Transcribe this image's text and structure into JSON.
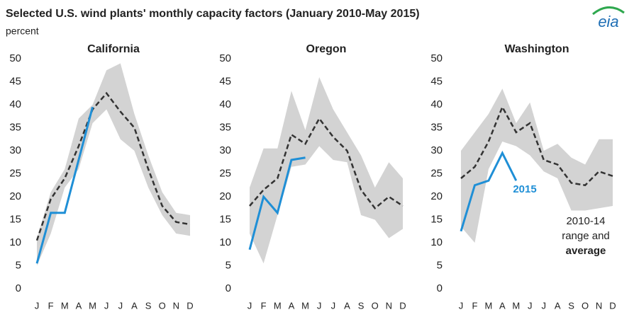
{
  "title": "Selected U.S. wind plants' monthly capacity factors (January 2010-May 2015)",
  "unit": "percent",
  "logo": "eia",
  "chart_data": [
    {
      "type": "line",
      "title": "California",
      "categories": [
        "J",
        "F",
        "M",
        "A",
        "M",
        "J",
        "J",
        "A",
        "S",
        "O",
        "N",
        "D"
      ],
      "ylim": [
        0,
        50
      ],
      "yticks": [
        0,
        5,
        10,
        15,
        20,
        25,
        30,
        35,
        40,
        45,
        50
      ],
      "range": {
        "color": "#d3d3d3",
        "low": [
          5,
          12,
          22,
          26,
          36,
          39,
          32.5,
          30,
          22,
          16,
          12,
          11.5
        ],
        "high": [
          11,
          21,
          26,
          37,
          40,
          47.5,
          49,
          38,
          29,
          21,
          16.5,
          16
        ]
      },
      "average": {
        "color": "#333333",
        "values": [
          10.5,
          19.5,
          24,
          31,
          39,
          42.5,
          38.5,
          35,
          26,
          18,
          14.5,
          14
        ]
      },
      "current": {
        "color": "#1f8fd6",
        "values": [
          5.5,
          16.5,
          16.5,
          28,
          39.5,
          null,
          null,
          null,
          null,
          null,
          null,
          null
        ]
      }
    },
    {
      "type": "line",
      "title": "Oregon",
      "categories": [
        "J",
        "F",
        "M",
        "A",
        "M",
        "J",
        "J",
        "A",
        "S",
        "O",
        "N",
        "D"
      ],
      "ylim": [
        0,
        50
      ],
      "yticks": [
        0,
        5,
        10,
        15,
        20,
        25,
        30,
        35,
        40,
        45,
        50
      ],
      "range": {
        "color": "#d3d3d3",
        "low": [
          12,
          5.5,
          16,
          26.5,
          27,
          31,
          28,
          27.5,
          16,
          15,
          11,
          13
        ],
        "high": [
          22,
          30.5,
          30.5,
          43,
          34.5,
          46,
          39,
          34,
          29,
          22,
          27.5,
          24
        ]
      },
      "average": {
        "color": "#333333",
        "values": [
          18,
          21.5,
          24,
          33.5,
          31.5,
          37,
          33,
          30,
          21.5,
          17.5,
          20,
          18
        ]
      },
      "current": {
        "color": "#1f8fd6",
        "values": [
          8.5,
          20,
          16.5,
          28,
          28.5,
          null,
          null,
          null,
          null,
          null,
          null,
          null
        ]
      }
    },
    {
      "type": "line",
      "title": "Washington",
      "categories": [
        "J",
        "F",
        "M",
        "A",
        "M",
        "J",
        "J",
        "A",
        "S",
        "O",
        "N",
        "D"
      ],
      "ylim": [
        0,
        50
      ],
      "yticks": [
        0,
        5,
        10,
        15,
        20,
        25,
        30,
        35,
        40,
        45,
        50
      ],
      "range": {
        "color": "#d3d3d3",
        "low": [
          13.5,
          10,
          26,
          32,
          31,
          29,
          25.5,
          24,
          17,
          17,
          17.5,
          18
        ],
        "high": [
          30,
          34,
          38,
          43.5,
          36,
          40.5,
          30,
          31.5,
          28.5,
          27,
          32.5,
          32.5
        ]
      },
      "average": {
        "color": "#333333",
        "values": [
          24,
          26.5,
          32,
          39.5,
          34,
          36,
          28,
          27,
          23,
          22.5,
          25.5,
          24.5
        ]
      },
      "current": {
        "color": "#1f8fd6",
        "values": [
          12.5,
          22.5,
          23.5,
          29.5,
          23.5,
          null,
          null,
          null,
          null,
          null,
          null,
          null
        ]
      },
      "annotations": [
        "2015",
        "2010-14",
        "range and",
        "average"
      ]
    }
  ]
}
